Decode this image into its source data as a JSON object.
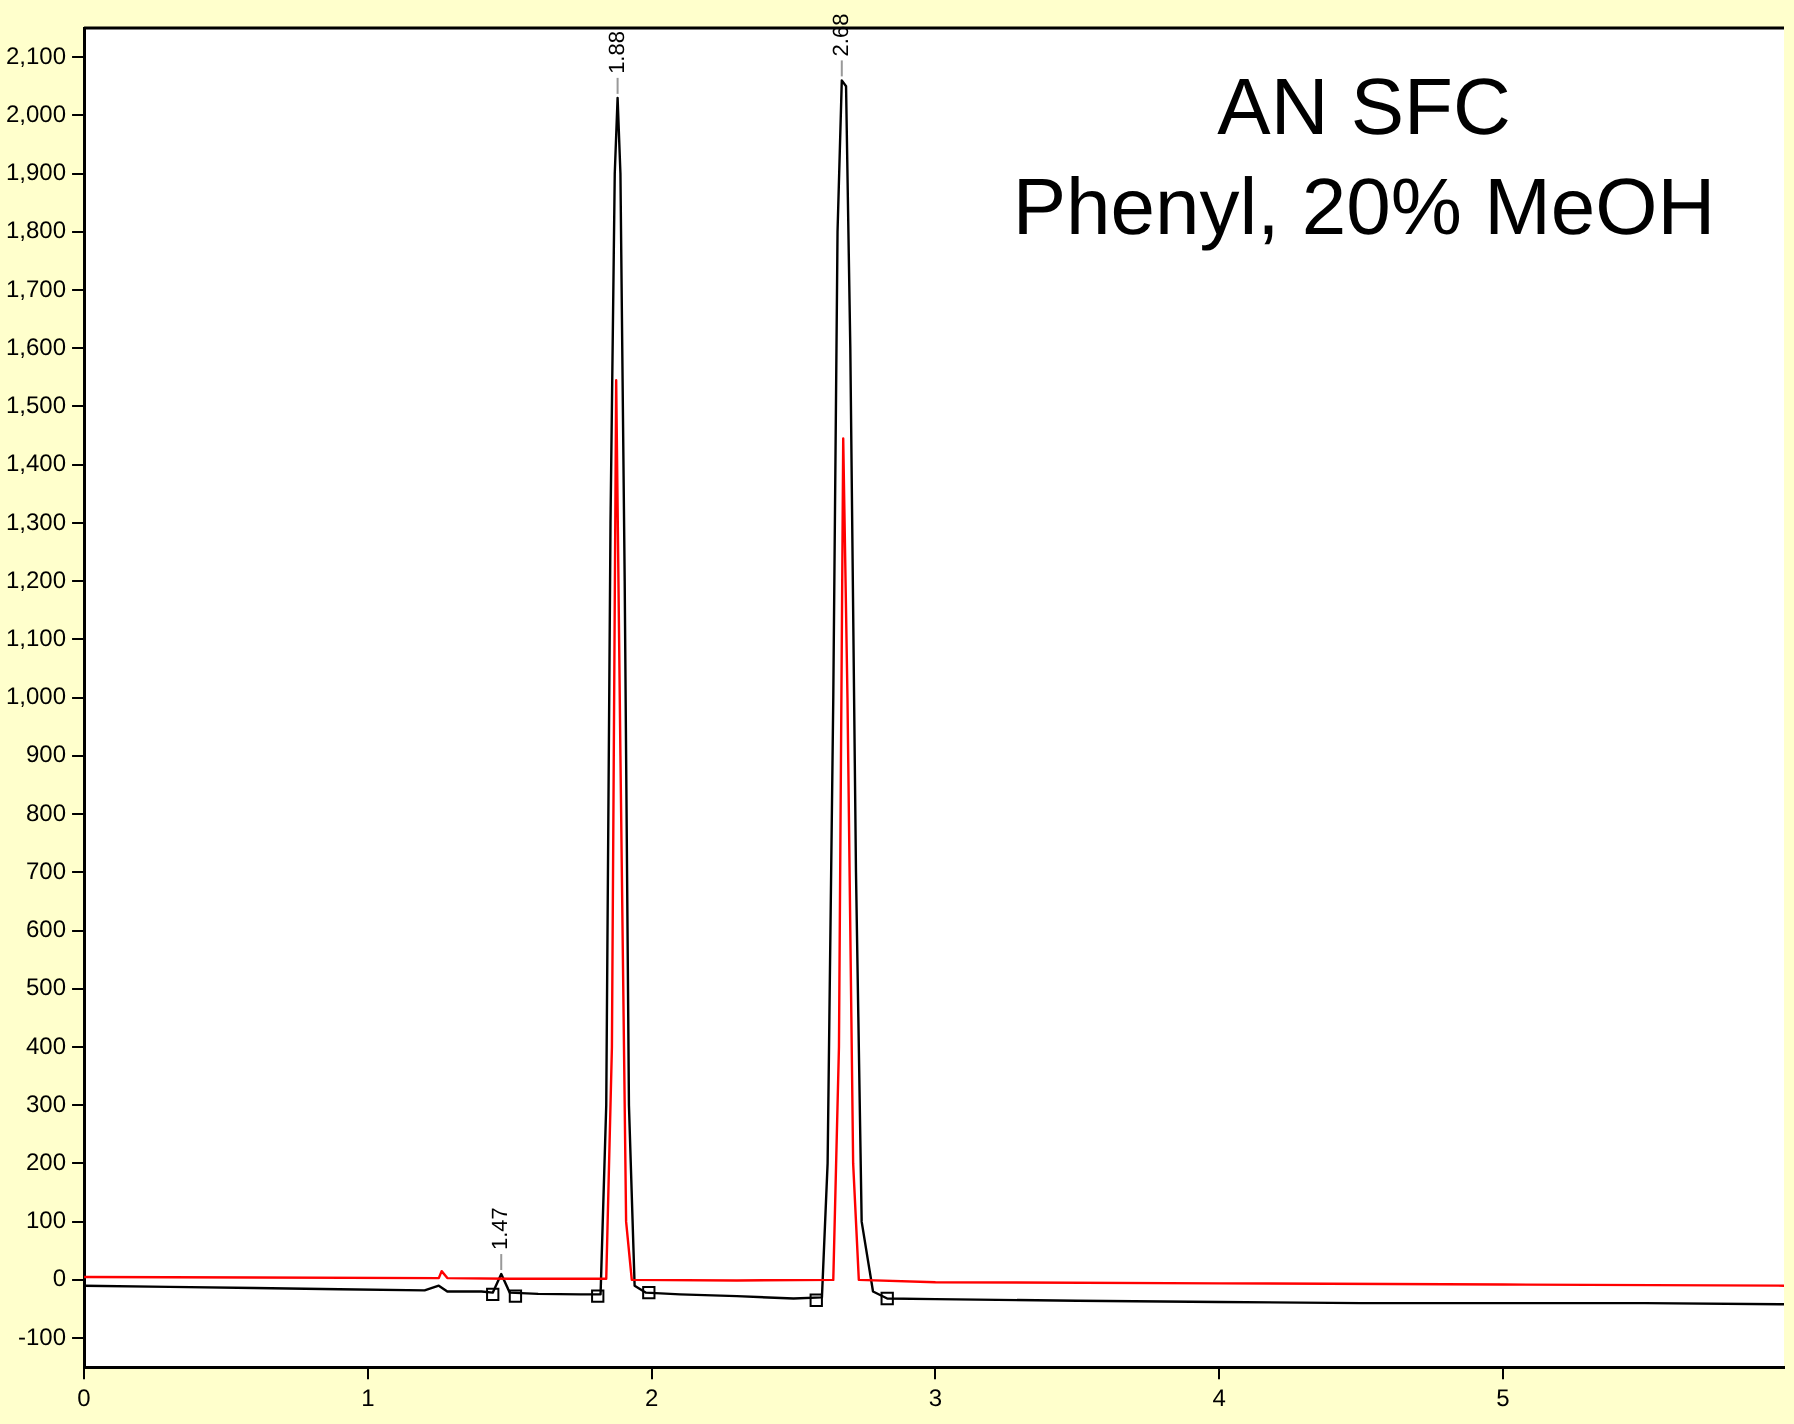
{
  "chart_data": {
    "type": "line",
    "title": "AN SFC",
    "subtitle": "Phenyl, 20% MeOH",
    "xlim": [
      0,
      5.99
    ],
    "xticks": [
      0,
      1,
      2,
      3,
      4,
      5
    ],
    "ylim": [
      -150,
      2150
    ],
    "yticks": [
      -100,
      0,
      100,
      200,
      300,
      400,
      500,
      600,
      700,
      800,
      900,
      {
        "value": 1000,
        "label": "1,000"
      },
      {
        "value": 1100,
        "label": "1,100"
      },
      {
        "value": 1200,
        "label": "1,200"
      },
      {
        "value": 1300,
        "label": "1,300"
      },
      {
        "value": 1400,
        "label": "1,400"
      },
      {
        "value": 1500,
        "label": "1,500"
      },
      {
        "value": 1600,
        "label": "1,600"
      },
      {
        "value": 1700,
        "label": "1,700"
      },
      {
        "value": 1800,
        "label": "1,800"
      },
      {
        "value": 1900,
        "label": "1,900"
      },
      {
        "value": 2000,
        "label": "2,000"
      },
      {
        "value": 2100,
        "label": "2,100"
      }
    ],
    "grid": false,
    "legend": false,
    "marker": "none",
    "line_style": "solid",
    "series": [
      {
        "color": "#ff0000",
        "x": [
          0,
          0.6,
          1.25,
          1.26,
          1.28,
          1.5,
          1.84,
          1.86,
          1.875,
          1.89,
          1.91,
          1.93,
          2.3,
          2.64,
          2.66,
          2.675,
          2.69,
          2.71,
          2.73,
          3,
          4,
          5,
          5.99
        ],
        "values": [
          5,
          4,
          3,
          15,
          3,
          2,
          2,
          400,
          1545,
          900,
          100,
          0,
          -1,
          0,
          400,
          1445,
          1000,
          200,
          0,
          -4,
          -6,
          -8,
          -10
        ]
      },
      {
        "color": "#000000",
        "x": [
          0,
          0.3,
          0.6,
          0.9,
          1.2,
          1.25,
          1.28,
          1.4,
          1.44,
          1.47,
          1.5,
          1.6,
          1.75,
          1.82,
          1.84,
          1.855,
          1.87,
          1.88,
          1.89,
          1.905,
          1.92,
          1.94,
          1.98,
          2.1,
          2.3,
          2.5,
          2.6,
          2.62,
          2.64,
          2.655,
          2.67,
          2.685,
          2.7,
          2.72,
          2.74,
          2.78,
          2.83,
          3,
          3.5,
          4,
          4.5,
          5,
          5.5,
          5.99
        ],
        "values": [
          -10,
          -12,
          -14,
          -16,
          -18,
          -10,
          -20,
          -20,
          -22,
          10,
          -22,
          -24,
          -25,
          -25,
          300,
          1300,
          1900,
          2030,
          1900,
          1200,
          300,
          -10,
          -22,
          -25,
          -28,
          -32,
          -30,
          200,
          1000,
          1800,
          2060,
          2050,
          1600,
          700,
          100,
          -20,
          -32,
          -33,
          -36,
          -38,
          -40,
          -40,
          -40,
          -42
        ]
      },
      {
        "type": "scatter",
        "marker": "square",
        "color": "#000000",
        "x": [
          1.44,
          1.52,
          1.81,
          1.99,
          2.58,
          2.83
        ],
        "values": [
          -25,
          -28,
          -28,
          -22,
          -35,
          -32
        ]
      }
    ],
    "annotations": [
      {
        "text": "1.47",
        "x": 1.47,
        "y": 10
      },
      {
        "text": "1.88",
        "x": 1.88,
        "y": 2030
      },
      {
        "text": "2.68",
        "x": 2.67,
        "y": 2060
      }
    ]
  }
}
